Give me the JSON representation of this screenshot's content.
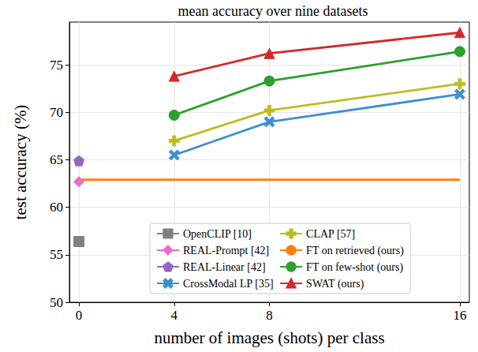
{
  "chart_data": {
    "type": "line",
    "title": "mean accuracy over nine datasets",
    "x_label": "number of images (shots) per class",
    "y_label": "test accuracy (%)",
    "xlim": [
      -0.4,
      16.4
    ],
    "xticks": [
      0,
      4,
      8,
      16
    ],
    "ylim": [
      50,
      79.5
    ],
    "yticks": [
      50,
      55,
      60,
      65,
      70,
      75
    ],
    "grid": true,
    "legend": "lower right",
    "series": [
      {
        "name": "OpenCLIP [10]",
        "color": "#808080",
        "marker": "square",
        "x": [
          0
        ],
        "values": [
          56.4
        ]
      },
      {
        "name": "REAL-Prompt [42]",
        "color": "#f06bc6",
        "marker": "diamond",
        "x": [
          0
        ],
        "values": [
          62.7
        ]
      },
      {
        "name": "REAL-Linear [42]",
        "color": "#9467bd",
        "marker": "pentagon",
        "x": [
          0
        ],
        "values": [
          64.9
        ]
      },
      {
        "name": "CrossModal LP [35]",
        "color": "#3f8fd0",
        "marker": "x",
        "x": [
          4,
          8,
          16
        ],
        "values": [
          65.5,
          69.0,
          71.9
        ]
      },
      {
        "name": "CLAP [57]",
        "color": "#bcbd22",
        "marker": "plus",
        "x": [
          4,
          8,
          16
        ],
        "values": [
          67.0,
          70.2,
          73.0
        ]
      },
      {
        "name": "FT on retrieved (ours)",
        "color": "#ff7f0e",
        "marker": "none",
        "x": [
          0,
          16
        ],
        "values": [
          62.9,
          62.9
        ]
      },
      {
        "name": "FT on few-shot (ours)",
        "color": "#2ca02c",
        "marker": "circle",
        "x": [
          4,
          8,
          16
        ],
        "values": [
          69.7,
          73.3,
          76.4
        ]
      },
      {
        "name": "SWAT (ours)",
        "color": "#d62728",
        "marker": "triangle",
        "x": [
          4,
          8,
          16
        ],
        "values": [
          73.8,
          76.2,
          78.4
        ]
      }
    ]
  }
}
